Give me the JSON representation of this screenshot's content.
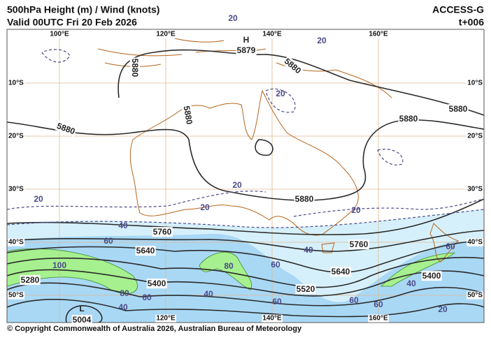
{
  "header": {
    "title": "500hPa Height (m) / Wind (knots)",
    "subtitle": "Valid 00UTC Fri 20 Feb 2026",
    "model": "ACCESS-G",
    "lead": "t+006"
  },
  "grid": {
    "lon_top": [
      "100°E",
      "120°E",
      "140°E",
      "160°E"
    ],
    "lon_bottom": [
      "120°E",
      "140°E",
      "160°E"
    ],
    "lat_left": [
      "10°S",
      "20°S",
      "30°S",
      "40°S",
      "50°S"
    ],
    "lat_right": [
      "10°S",
      "20°S",
      "30°S",
      "40°S",
      "50°S"
    ]
  },
  "pressure_centres": [
    "H",
    "L"
  ],
  "height_labels": [
    "5880",
    "5880",
    "5880",
    "5880",
    "5880",
    "5880",
    "5880",
    "5879",
    "5760",
    "5760",
    "5640",
    "5640",
    "5520",
    "5400",
    "5400",
    "5280",
    "5004"
  ],
  "wind_labels": [
    "20",
    "20",
    "20",
    "20",
    "20",
    "20",
    "20",
    "20",
    "40",
    "40",
    "40",
    "40",
    "40",
    "60",
    "60",
    "60",
    "60",
    "60",
    "60",
    "60",
    "80",
    "80",
    "100"
  ],
  "copyright": "© Copyright Commonwealth of Australia 2026, Australian Bureau of Meteorology"
}
